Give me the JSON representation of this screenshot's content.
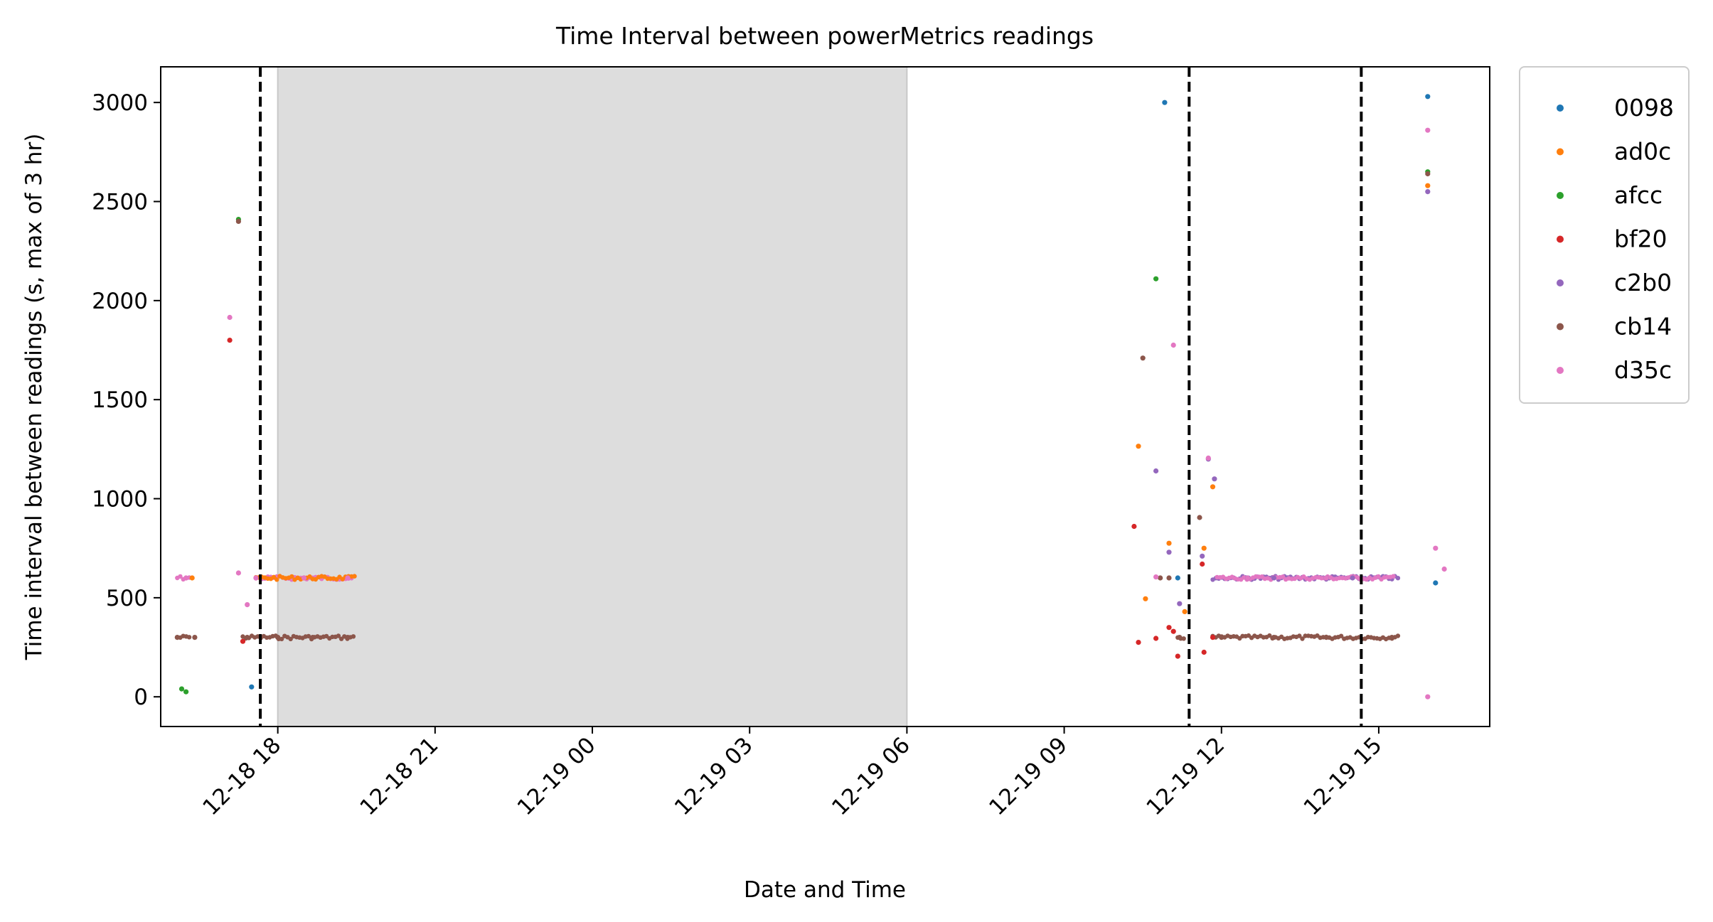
{
  "chart_data": {
    "type": "scatter",
    "title": "Time Interval between powerMetrics readings",
    "xlabel": "Date and Time",
    "ylabel": "Time interval between readings (s, max of 3 hr)",
    "x_axis_kind": "datetime",
    "xlim": [
      "2024-12-18 15:46",
      "2024-12-19 17:07"
    ],
    "ylim": [
      -150,
      3180
    ],
    "x_ticks": [
      {
        "value": "2024-12-18 18:00",
        "label": "12-18 18"
      },
      {
        "value": "2024-12-18 21:00",
        "label": "12-18 21"
      },
      {
        "value": "2024-12-19 00:00",
        "label": "12-19 00"
      },
      {
        "value": "2024-12-19 03:00",
        "label": "12-19 03"
      },
      {
        "value": "2024-12-19 06:00",
        "label": "12-19 06"
      },
      {
        "value": "2024-12-19 09:00",
        "label": "12-19 09"
      },
      {
        "value": "2024-12-19 12:00",
        "label": "12-19 12"
      },
      {
        "value": "2024-12-19 15:00",
        "label": "12-19 15"
      }
    ],
    "y_ticks": [
      0,
      500,
      1000,
      1500,
      2000,
      2500,
      3000
    ],
    "grid": false,
    "legend_position": "outside-right-top",
    "shaded_region": {
      "x_start": "2024-12-18 18:00",
      "x_end": "2024-12-19 06:00",
      "color": "#dddddd"
    },
    "vertical_lines": [
      "2024-12-18 17:40",
      "2024-12-19 11:23",
      "2024-12-19 14:40"
    ],
    "series": [
      {
        "name": "0098",
        "color": "#1f77b4",
        "points": [
          [
            "2024-12-18 17:30",
            50
          ],
          [
            "2024-12-19 10:55",
            3000
          ],
          [
            "2024-12-19 15:56",
            3030
          ],
          [
            "2024-12-19 16:05",
            575
          ],
          [
            "2024-12-19 11:10",
            600
          ],
          [
            "2024-12-19 12:30",
            600
          ],
          [
            "2024-12-19 14:00",
            600
          ]
        ]
      },
      {
        "name": "ad0c",
        "color": "#ff7f0e",
        "points": [
          [
            "2024-12-18 16:22",
            600
          ],
          [
            "2024-12-18 18:30",
            600
          ],
          [
            "2024-12-19 10:25",
            1265
          ],
          [
            "2024-12-19 10:33",
            495
          ],
          [
            "2024-12-19 11:00",
            775
          ],
          [
            "2024-12-19 11:18",
            430
          ],
          [
            "2024-12-19 11:40",
            750
          ],
          [
            "2024-12-19 11:50",
            1060
          ],
          [
            "2024-12-19 15:56",
            2580
          ]
        ]
      },
      {
        "name": "afcc",
        "color": "#2ca02c",
        "points": [
          [
            "2024-12-18 16:10",
            40
          ],
          [
            "2024-12-18 16:15",
            25
          ],
          [
            "2024-12-18 17:15",
            2410
          ],
          [
            "2024-12-19 10:45",
            2110
          ],
          [
            "2024-12-19 15:56",
            2650
          ]
        ]
      },
      {
        "name": "bf20",
        "color": "#d62728",
        "points": [
          [
            "2024-12-18 17:05",
            1800
          ],
          [
            "2024-12-18 17:20",
            280
          ],
          [
            "2024-12-19 10:20",
            860
          ],
          [
            "2024-12-19 10:25",
            275
          ],
          [
            "2024-12-19 10:45",
            295
          ],
          [
            "2024-12-19 11:00",
            350
          ],
          [
            "2024-12-19 11:05",
            330
          ],
          [
            "2024-12-19 11:10",
            205
          ],
          [
            "2024-12-19 11:38",
            670
          ],
          [
            "2024-12-19 11:40",
            225
          ],
          [
            "2024-12-19 11:50",
            300
          ]
        ]
      },
      {
        "name": "c2b0",
        "color": "#9467bd",
        "points": [
          [
            "2024-12-19 10:45",
            1140
          ],
          [
            "2024-12-19 11:00",
            730
          ],
          [
            "2024-12-19 11:12",
            470
          ],
          [
            "2024-12-19 11:38",
            710
          ],
          [
            "2024-12-19 11:45",
            1200
          ],
          [
            "2024-12-19 11:52",
            1100
          ],
          [
            "2024-12-19 13:00",
            600
          ],
          [
            "2024-12-19 14:30",
            600
          ],
          [
            "2024-12-19 15:56",
            2550
          ]
        ]
      },
      {
        "name": "cb14",
        "color": "#8c564b",
        "points": [
          [
            "2024-12-18 16:05",
            300
          ],
          [
            "2024-12-18 16:25",
            300
          ],
          [
            "2024-12-18 17:15",
            2400
          ],
          [
            "2024-12-18 17:25",
            300
          ],
          [
            "2024-12-18 18:00",
            300
          ],
          [
            "2024-12-18 18:40",
            300
          ],
          [
            "2024-12-18 19:20",
            300
          ],
          [
            "2024-12-19 10:30",
            1710
          ],
          [
            "2024-12-19 10:50",
            600
          ],
          [
            "2024-12-19 11:00",
            600
          ],
          [
            "2024-12-19 11:12",
            300
          ],
          [
            "2024-12-19 11:35",
            905
          ],
          [
            "2024-12-19 12:00",
            300
          ],
          [
            "2024-12-19 13:00",
            300
          ],
          [
            "2024-12-19 14:00",
            300
          ],
          [
            "2024-12-19 15:15",
            300
          ],
          [
            "2024-12-19 15:56",
            2640
          ]
        ]
      },
      {
        "name": "d35c",
        "color": "#e377c2",
        "points": [
          [
            "2024-12-18 16:15",
            600
          ],
          [
            "2024-12-18 17:05",
            1915
          ],
          [
            "2024-12-18 17:15",
            625
          ],
          [
            "2024-12-18 17:25",
            465
          ],
          [
            "2024-12-18 17:35",
            600
          ],
          [
            "2024-12-18 18:30",
            600
          ],
          [
            "2024-12-18 19:20",
            600
          ],
          [
            "2024-12-19 10:45",
            605
          ],
          [
            "2024-12-19 11:05",
            1775
          ],
          [
            "2024-12-19 11:45",
            1205
          ],
          [
            "2024-12-19 12:30",
            600
          ],
          [
            "2024-12-19 14:00",
            600
          ],
          [
            "2024-12-19 15:56",
            2860
          ],
          [
            "2024-12-19 15:56",
            0
          ],
          [
            "2024-12-19 16:05",
            750
          ],
          [
            "2024-12-19 16:15",
            645
          ]
        ]
      }
    ],
    "dense_bands": [
      {
        "series": "cb14",
        "y": 300,
        "from": "2024-12-18 16:05",
        "to": "2024-12-18 16:22"
      },
      {
        "series": "d35c",
        "y": 600,
        "from": "2024-12-18 16:05",
        "to": "2024-12-18 16:22"
      },
      {
        "series": "cb14",
        "y": 300,
        "from": "2024-12-18 17:20",
        "to": "2024-12-18 19:28"
      },
      {
        "series": "d35c",
        "y": 600,
        "from": "2024-12-18 17:35",
        "to": "2024-12-18 19:28"
      },
      {
        "series": "ad0c",
        "y": 600,
        "from": "2024-12-18 17:35",
        "to": "2024-12-18 19:28"
      },
      {
        "series": "cb14",
        "y": 300,
        "from": "2024-12-19 11:10",
        "to": "2024-12-19 11:20"
      },
      {
        "series": "cb14",
        "y": 300,
        "from": "2024-12-19 11:50",
        "to": "2024-12-19 15:25"
      },
      {
        "series": "c2b0",
        "y": 600,
        "from": "2024-12-19 11:50",
        "to": "2024-12-19 15:25"
      },
      {
        "series": "d35c",
        "y": 600,
        "from": "2024-12-19 11:55",
        "to": "2024-12-19 15:20"
      }
    ]
  }
}
